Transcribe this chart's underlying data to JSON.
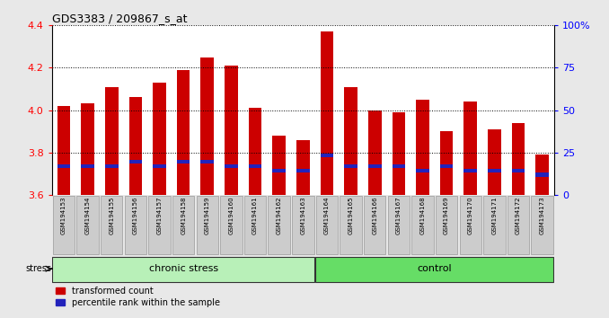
{
  "title": "GDS3383 / 209867_s_at",
  "samples": [
    "GSM194153",
    "GSM194154",
    "GSM194155",
    "GSM194156",
    "GSM194157",
    "GSM194158",
    "GSM194159",
    "GSM194160",
    "GSM194161",
    "GSM194162",
    "GSM194163",
    "GSM194164",
    "GSM194165",
    "GSM194166",
    "GSM194167",
    "GSM194168",
    "GSM194169",
    "GSM194170",
    "GSM194171",
    "GSM194172",
    "GSM194173"
  ],
  "transformed_count": [
    4.02,
    4.03,
    4.11,
    4.06,
    4.13,
    4.19,
    4.25,
    4.21,
    4.01,
    3.88,
    3.86,
    4.37,
    4.11,
    4.0,
    3.99,
    4.05,
    3.9,
    4.04,
    3.91,
    3.94,
    3.79
  ],
  "percentile_rank_y": [
    3.735,
    3.735,
    3.735,
    3.755,
    3.735,
    3.755,
    3.755,
    3.735,
    3.735,
    3.715,
    3.715,
    3.785,
    3.735,
    3.735,
    3.735,
    3.715,
    3.735,
    3.715,
    3.715,
    3.715,
    3.695
  ],
  "group_labels": [
    "chronic stress",
    "control"
  ],
  "group_ranges": [
    [
      0,
      11
    ],
    [
      11,
      21
    ]
  ],
  "group_colors_light": [
    "#b8f0b8",
    "#66dd66"
  ],
  "bar_color_red": "#CC0000",
  "bar_color_blue": "#2222BB",
  "bar_width": 0.55,
  "ymin": 3.6,
  "ymax": 4.4,
  "y_ticks": [
    3.6,
    3.8,
    4.0,
    4.2,
    4.4
  ],
  "y2min": 0,
  "y2max": 100,
  "y2_ticks": [
    0,
    25,
    50,
    75,
    100
  ],
  "y2_tick_labels": [
    "0",
    "25",
    "50",
    "75",
    "100%"
  ],
  "stress_label": "stress",
  "legend_items": [
    {
      "label": "transformed count",
      "color": "#CC0000"
    },
    {
      "label": "percentile rank within the sample",
      "color": "#2222BB"
    }
  ],
  "background_color": "#e8e8e8",
  "plot_bg_color": "#ffffff",
  "blue_bar_height": 0.018
}
